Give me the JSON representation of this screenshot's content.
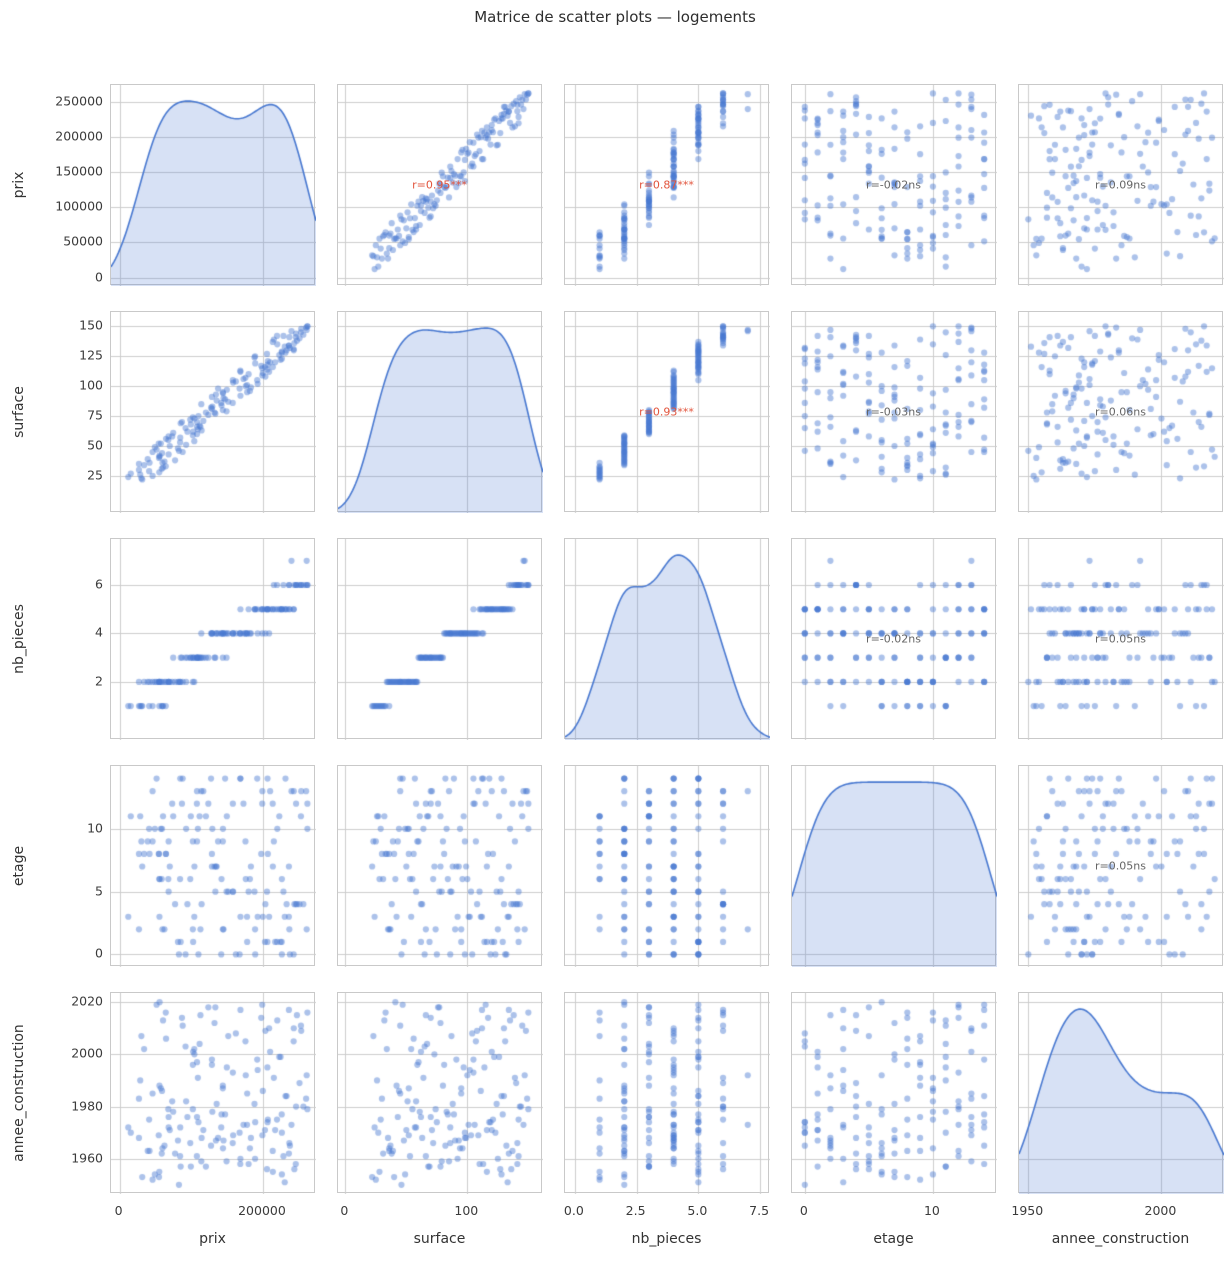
{
  "title": "Matrice de scatter plots — logements",
  "colors": {
    "dot": "72,120,208",
    "dot_alpha": 0.45,
    "kde_line": "#4878d0",
    "kde_fill": "rgba(72,120,208,0.22)",
    "grid": "#cccccc",
    "sig_annotation": "#e2543c",
    "ns_annotation": "#666666",
    "tick_text": "#3b3b3b",
    "title_text": "#2e2e2e"
  },
  "chart_data": {
    "type": "scatter_matrix",
    "title": "Matrice de scatter plots — logements",
    "diagonal": "kde",
    "grid": true,
    "variables": [
      {
        "key": "prix",
        "label": "prix",
        "lim": [
          -12000,
          274000
        ],
        "yticks": [
          0,
          50000,
          100000,
          150000,
          200000,
          250000
        ],
        "ytick_labels": [
          "0",
          "50000",
          "100000",
          "150000",
          "200000",
          "250000"
        ],
        "xticks": [
          0,
          200000
        ],
        "xtick_labels": [
          "0",
          "200000"
        ]
      },
      {
        "key": "surface",
        "label": "surface",
        "lim": [
          -6,
          162
        ],
        "yticks": [
          25,
          50,
          75,
          100,
          125,
          150
        ],
        "ytick_labels": [
          "25",
          "50",
          "75",
          "100",
          "125",
          "150"
        ],
        "xticks": [
          0,
          100
        ],
        "xtick_labels": [
          "0",
          "100"
        ]
      },
      {
        "key": "nb_pieces",
        "label": "nb_pieces",
        "lim": [
          -0.4,
          7.9
        ],
        "yticks": [
          2,
          4,
          6
        ],
        "ytick_labels": [
          "2",
          "4",
          "6"
        ],
        "xticks": [
          0,
          2.5,
          5,
          7.5
        ],
        "xtick_labels": [
          "0.0",
          "2.5",
          "5.0",
          "7.5"
        ]
      },
      {
        "key": "etage",
        "label": "etage",
        "lim": [
          -1,
          15
        ],
        "yticks": [
          0,
          5,
          10
        ],
        "ytick_labels": [
          "0",
          "5",
          "10"
        ],
        "xticks": [
          0,
          10
        ],
        "xtick_labels": [
          "0",
          "10"
        ]
      },
      {
        "key": "annee_construction",
        "label": "annee_construction",
        "lim": [
          1946.5,
          2023.5
        ],
        "yticks": [
          1960,
          1980,
          2000,
          2020
        ],
        "ytick_labels": [
          "1960",
          "1980",
          "2000",
          "2020"
        ],
        "xticks": [
          1950,
          2000
        ],
        "xtick_labels": [
          "1950",
          "2000"
        ]
      }
    ],
    "annotations": [
      {
        "row": 0,
        "col": 1,
        "text": "r=0.95***",
        "significant": true
      },
      {
        "row": 0,
        "col": 2,
        "text": "r=0.87***",
        "significant": true
      },
      {
        "row": 0,
        "col": 3,
        "text": "r=-0.02ns",
        "significant": false
      },
      {
        "row": 0,
        "col": 4,
        "text": "r=0.09ns",
        "significant": false
      },
      {
        "row": 1,
        "col": 2,
        "text": "r=0.93***",
        "significant": true
      },
      {
        "row": 1,
        "col": 3,
        "text": "r=-0.03ns",
        "significant": false
      },
      {
        "row": 1,
        "col": 4,
        "text": "r=0.06ns",
        "significant": false
      },
      {
        "row": 2,
        "col": 3,
        "text": "r=-0.02ns",
        "significant": false
      },
      {
        "row": 2,
        "col": 4,
        "text": "r=0.05ns",
        "significant": false
      },
      {
        "row": 3,
        "col": 4,
        "text": "r=0.05ns",
        "significant": false
      }
    ],
    "dataset": {
      "prix": [
        12100,
        111600,
        237600,
        135400,
        88000,
        180000,
        102200,
        219600,
        123800,
        58800,
        144000,
        210000,
        54600,
        247400,
        129400,
        55400,
        162200,
        116800,
        261000,
        39200,
        199000,
        94600,
        231400,
        128800,
        81400,
        220000,
        149200,
        28800,
        177800,
        64800,
        246200,
        157800,
        34200,
        206400,
        85200,
        262000,
        55600,
        226400,
        149600,
        84400,
        243000,
        102200,
        31600,
        175600,
        114400,
        215200,
        59800,
        168600,
        142200,
        82800,
        222800,
        68400,
        253400,
        168600,
        27000,
        202800,
        87000,
        243800,
        59200,
        183200,
        92000,
        206800,
        77400,
        158000,
        132400,
        236800,
        92800,
        168400,
        151600,
        15600,
        230400,
        108000,
        239800,
        178000,
        55800,
        199200,
        104400,
        226200,
        49200,
        251000,
        127600,
        64400,
        189200,
        107800,
        192600,
        68000,
        253000,
        145000,
        46000,
        188200,
        133600,
        213600,
        68400,
        199800,
        99400,
        242800,
        84600,
        176000,
        27000,
        197600,
        114000,
        256400,
        70000,
        224600,
        144200,
        41200,
        203400,
        98600,
        260200,
        55000,
        206200,
        74800,
        236200,
        51600,
        167400,
        144000,
        205600,
        104200,
        172800,
        62600,
        189000,
        147200,
        60600,
        158400,
        109200,
        213800,
        110000,
        30400,
        181800,
        73400,
        245800,
        128800,
        217000,
        46000,
        236200,
        134400,
        102600,
        262000,
        41800,
        208600,
        108000,
        226400,
        57600,
        141800,
        192000,
        228600,
        112800,
        137400,
        233000,
        120400
      ],
      "surface": [
        24,
        67,
        132,
        88,
        45,
        110,
        59,
        142,
        76,
        31,
        95,
        120,
        52,
        138,
        83,
        28,
        104,
        71,
        147,
        39,
        115,
        62,
        128,
        91,
        48,
        135,
        79,
        26,
        101,
        56,
        144,
        86,
        34,
        118,
        69,
        150,
        42,
        123,
        97,
        53,
        130,
        74,
        22,
        107,
        63,
        139,
        36,
        112,
        84,
        46,
        126,
        58,
        148,
        92,
        30,
        116,
        70,
        136,
        44,
        99,
        65,
        121,
        38,
        105,
        78,
        141,
        51,
        113,
        87,
        27,
        133,
        60,
        146,
        95,
        41,
        109,
        73,
        129,
        49,
        140,
        82,
        33,
        119,
        66,
        102,
        55,
        145,
        90,
        25,
        124,
        77,
        137,
        43,
        111,
        68,
        131,
        57,
        100,
        35,
        117,
        85,
        143,
        50,
        122,
        94,
        29,
        108,
        72,
        149,
        40,
        114,
        61,
        134,
        47,
        98,
        80,
        127,
        54,
        106,
        37,
        125,
        89,
        32,
        103,
        64,
        116,
        75,
        23,
        96,
        58,
        141,
        81,
        120,
        45,
        134,
        93,
        62,
        150,
        36,
        112,
        70,
        128,
        52,
        86,
        105,
        142,
        66,
        98,
        130,
        78
      ],
      "nb_pieces": [
        1,
        3,
        5,
        4,
        2,
        5,
        2,
        6,
        3,
        1,
        4,
        5,
        2,
        6,
        4,
        1,
        4,
        3,
        7,
        2,
        5,
        3,
        5,
        4,
        2,
        5,
        3,
        1,
        4,
        2,
        6,
        4,
        2,
        5,
        3,
        6,
        2,
        5,
        4,
        2,
        5,
        3,
        1,
        4,
        3,
        6,
        1,
        5,
        4,
        2,
        5,
        2,
        6,
        4,
        1,
        5,
        3,
        6,
        2,
        4,
        3,
        5,
        2,
        4,
        3,
        6,
        2,
        4,
        4,
        1,
        5,
        3,
        7,
        4,
        2,
        4,
        3,
        5,
        2,
        6,
        4,
        1,
        5,
        3,
        4,
        2,
        6,
        4,
        1,
        5,
        3,
        5,
        2,
        5,
        3,
        5,
        2,
        4,
        2,
        5,
        4,
        6,
        2,
        5,
        4,
        1,
        4,
        3,
        6,
        2,
        5,
        3,
        5,
        2,
        4,
        3,
        5,
        2,
        4,
        2,
        5,
        4,
        1,
        4,
        3,
        5,
        3,
        1,
        4,
        2,
        6,
        4,
        5,
        2,
        6,
        4,
        3,
        6,
        2,
        4,
        3,
        5,
        2,
        4,
        5,
        6,
        3,
        4,
        5,
        3
      ],
      "etage": [
        3,
        11,
        0,
        7,
        14,
        5,
        9,
        1,
        12,
        6,
        2,
        13,
        8,
        4,
        10,
        6,
        0,
        13,
        2,
        9,
        12,
        4,
        14,
        7,
        1,
        10,
        5,
        11,
        3,
        8,
        12,
        5,
        8,
        14,
        1,
        10,
        3,
        0,
        11,
        6,
        13,
        2,
        7,
        9,
        4,
        9,
        2,
        14,
        6,
        0,
        11,
        5,
        13,
        3,
        8,
        1,
        12,
        4,
        10,
        7,
        0,
        8,
        4,
        12,
        7,
        2,
        10,
        14,
        5,
        11,
        3,
        9,
        13,
        1,
        6,
        13,
        7,
        1,
        10,
        4,
        14,
        8,
        0,
        12,
        3,
        6,
        11,
        2,
        9,
        5,
        5,
        12,
        9,
        3,
        11,
        0,
        14,
        6,
        2,
        8,
        13,
        4,
        7,
        1,
        10,
        10,
        4,
        6,
        13,
        8,
        1,
        11,
        7,
        14,
        0,
        9,
        5,
        3,
        12,
        2,
        2,
        14,
        11,
        5,
        10,
        7,
        0,
        9,
        6,
        12,
        4,
        8,
        1,
        13,
        3,
        7,
        1,
        12,
        8,
        3,
        13,
        6,
        10,
        0,
        14,
        5,
        2,
        9,
        4,
        11
      ],
      "annee_construction": [
        1972,
        2004,
        1965,
        1981,
        2011,
        1958,
        1996,
        1975,
        2018,
        1962,
        1987,
        2001,
        1969,
        2015,
        1978,
        1955,
        2008,
        1971,
        1992,
        1963,
        2019,
        1976,
        1984,
        1998,
        1967,
        2013,
        1959,
        1990,
        1973,
        2006,
        1980,
        1966,
        2002,
        1974,
        1957,
        2016,
        1988,
        1970,
        1995,
        1961,
        2010,
        1979,
        1953,
        2005,
        1968,
        1991,
        1964,
        2017,
        1977,
        1950,
        1999,
        1972,
        2009,
        1960,
        1983,
        1971,
        2014,
        1956,
        1986,
        1968,
        2003,
        1975,
        1962,
        1993,
        2012,
        1966,
        1982,
        1958,
        2007,
        1970,
        1951,
        1997,
        1973,
        1985,
        2020,
        1969,
        2000,
        1977,
        1954,
        1989,
        1965,
        2016,
        1974,
        1961,
        1994,
        1979,
        2011,
        1967,
        1952,
        1981,
        2018,
        1963,
        1976,
        1986,
        1957,
        2005,
        1972,
        1992,
        1968,
        2014,
        1959,
        1980,
        1971,
        1999,
        1964,
        1975,
        2009,
        1966,
        1983,
        1953,
        1995,
        1978,
        1962,
        2019,
        1970,
        1988,
        1956,
        2002,
        1973,
        1965,
        1960,
        1977,
        2013,
        1969,
        1991,
        1955,
        1974,
        2007,
        1964,
        1982,
        1958,
        1996,
        1971,
        1985,
        2017,
        1967,
        2001,
        1979,
        1963,
        2010,
        1976,
        1954,
        1987,
        1972,
        1998,
        1961,
        2015,
        1968,
        1984,
        1957
      ]
    }
  }
}
